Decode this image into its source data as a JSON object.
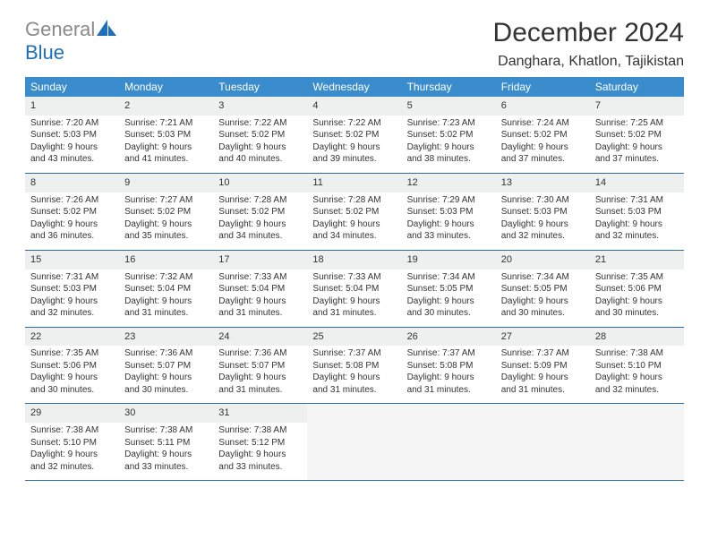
{
  "logo": {
    "text1": "General",
    "text2": "Blue"
  },
  "title": "December 2024",
  "location": "Danghara, Khatlon, Tajikistan",
  "colors": {
    "header_bg": "#3a8ccc",
    "header_text": "#ffffff",
    "daynum_bg": "#eef0f0",
    "row_border": "#2f6fa8",
    "logo_gray": "#8a8a8a",
    "logo_blue": "#1e6fb8",
    "body_text": "#333333",
    "page_bg": "#ffffff"
  },
  "weekdays": [
    "Sunday",
    "Monday",
    "Tuesday",
    "Wednesday",
    "Thursday",
    "Friday",
    "Saturday"
  ],
  "weeks": [
    {
      "days": [
        {
          "n": "1",
          "sr": "Sunrise: 7:20 AM",
          "ss": "Sunset: 5:03 PM",
          "dl1": "Daylight: 9 hours",
          "dl2": "and 43 minutes."
        },
        {
          "n": "2",
          "sr": "Sunrise: 7:21 AM",
          "ss": "Sunset: 5:03 PM",
          "dl1": "Daylight: 9 hours",
          "dl2": "and 41 minutes."
        },
        {
          "n": "3",
          "sr": "Sunrise: 7:22 AM",
          "ss": "Sunset: 5:02 PM",
          "dl1": "Daylight: 9 hours",
          "dl2": "and 40 minutes."
        },
        {
          "n": "4",
          "sr": "Sunrise: 7:22 AM",
          "ss": "Sunset: 5:02 PM",
          "dl1": "Daylight: 9 hours",
          "dl2": "and 39 minutes."
        },
        {
          "n": "5",
          "sr": "Sunrise: 7:23 AM",
          "ss": "Sunset: 5:02 PM",
          "dl1": "Daylight: 9 hours",
          "dl2": "and 38 minutes."
        },
        {
          "n": "6",
          "sr": "Sunrise: 7:24 AM",
          "ss": "Sunset: 5:02 PM",
          "dl1": "Daylight: 9 hours",
          "dl2": "and 37 minutes."
        },
        {
          "n": "7",
          "sr": "Sunrise: 7:25 AM",
          "ss": "Sunset: 5:02 PM",
          "dl1": "Daylight: 9 hours",
          "dl2": "and 37 minutes."
        }
      ]
    },
    {
      "days": [
        {
          "n": "8",
          "sr": "Sunrise: 7:26 AM",
          "ss": "Sunset: 5:02 PM",
          "dl1": "Daylight: 9 hours",
          "dl2": "and 36 minutes."
        },
        {
          "n": "9",
          "sr": "Sunrise: 7:27 AM",
          "ss": "Sunset: 5:02 PM",
          "dl1": "Daylight: 9 hours",
          "dl2": "and 35 minutes."
        },
        {
          "n": "10",
          "sr": "Sunrise: 7:28 AM",
          "ss": "Sunset: 5:02 PM",
          "dl1": "Daylight: 9 hours",
          "dl2": "and 34 minutes."
        },
        {
          "n": "11",
          "sr": "Sunrise: 7:28 AM",
          "ss": "Sunset: 5:02 PM",
          "dl1": "Daylight: 9 hours",
          "dl2": "and 34 minutes."
        },
        {
          "n": "12",
          "sr": "Sunrise: 7:29 AM",
          "ss": "Sunset: 5:03 PM",
          "dl1": "Daylight: 9 hours",
          "dl2": "and 33 minutes."
        },
        {
          "n": "13",
          "sr": "Sunrise: 7:30 AM",
          "ss": "Sunset: 5:03 PM",
          "dl1": "Daylight: 9 hours",
          "dl2": "and 32 minutes."
        },
        {
          "n": "14",
          "sr": "Sunrise: 7:31 AM",
          "ss": "Sunset: 5:03 PM",
          "dl1": "Daylight: 9 hours",
          "dl2": "and 32 minutes."
        }
      ]
    },
    {
      "days": [
        {
          "n": "15",
          "sr": "Sunrise: 7:31 AM",
          "ss": "Sunset: 5:03 PM",
          "dl1": "Daylight: 9 hours",
          "dl2": "and 32 minutes."
        },
        {
          "n": "16",
          "sr": "Sunrise: 7:32 AM",
          "ss": "Sunset: 5:04 PM",
          "dl1": "Daylight: 9 hours",
          "dl2": "and 31 minutes."
        },
        {
          "n": "17",
          "sr": "Sunrise: 7:33 AM",
          "ss": "Sunset: 5:04 PM",
          "dl1": "Daylight: 9 hours",
          "dl2": "and 31 minutes."
        },
        {
          "n": "18",
          "sr": "Sunrise: 7:33 AM",
          "ss": "Sunset: 5:04 PM",
          "dl1": "Daylight: 9 hours",
          "dl2": "and 31 minutes."
        },
        {
          "n": "19",
          "sr": "Sunrise: 7:34 AM",
          "ss": "Sunset: 5:05 PM",
          "dl1": "Daylight: 9 hours",
          "dl2": "and 30 minutes."
        },
        {
          "n": "20",
          "sr": "Sunrise: 7:34 AM",
          "ss": "Sunset: 5:05 PM",
          "dl1": "Daylight: 9 hours",
          "dl2": "and 30 minutes."
        },
        {
          "n": "21",
          "sr": "Sunrise: 7:35 AM",
          "ss": "Sunset: 5:06 PM",
          "dl1": "Daylight: 9 hours",
          "dl2": "and 30 minutes."
        }
      ]
    },
    {
      "days": [
        {
          "n": "22",
          "sr": "Sunrise: 7:35 AM",
          "ss": "Sunset: 5:06 PM",
          "dl1": "Daylight: 9 hours",
          "dl2": "and 30 minutes."
        },
        {
          "n": "23",
          "sr": "Sunrise: 7:36 AM",
          "ss": "Sunset: 5:07 PM",
          "dl1": "Daylight: 9 hours",
          "dl2": "and 30 minutes."
        },
        {
          "n": "24",
          "sr": "Sunrise: 7:36 AM",
          "ss": "Sunset: 5:07 PM",
          "dl1": "Daylight: 9 hours",
          "dl2": "and 31 minutes."
        },
        {
          "n": "25",
          "sr": "Sunrise: 7:37 AM",
          "ss": "Sunset: 5:08 PM",
          "dl1": "Daylight: 9 hours",
          "dl2": "and 31 minutes."
        },
        {
          "n": "26",
          "sr": "Sunrise: 7:37 AM",
          "ss": "Sunset: 5:08 PM",
          "dl1": "Daylight: 9 hours",
          "dl2": "and 31 minutes."
        },
        {
          "n": "27",
          "sr": "Sunrise: 7:37 AM",
          "ss": "Sunset: 5:09 PM",
          "dl1": "Daylight: 9 hours",
          "dl2": "and 31 minutes."
        },
        {
          "n": "28",
          "sr": "Sunrise: 7:38 AM",
          "ss": "Sunset: 5:10 PM",
          "dl1": "Daylight: 9 hours",
          "dl2": "and 32 minutes."
        }
      ]
    },
    {
      "days": [
        {
          "n": "29",
          "sr": "Sunrise: 7:38 AM",
          "ss": "Sunset: 5:10 PM",
          "dl1": "Daylight: 9 hours",
          "dl2": "and 32 minutes."
        },
        {
          "n": "30",
          "sr": "Sunrise: 7:38 AM",
          "ss": "Sunset: 5:11 PM",
          "dl1": "Daylight: 9 hours",
          "dl2": "and 33 minutes."
        },
        {
          "n": "31",
          "sr": "Sunrise: 7:38 AM",
          "ss": "Sunset: 5:12 PM",
          "dl1": "Daylight: 9 hours",
          "dl2": "and 33 minutes."
        },
        {
          "empty": true
        },
        {
          "empty": true
        },
        {
          "empty": true
        },
        {
          "empty": true
        }
      ]
    }
  ]
}
